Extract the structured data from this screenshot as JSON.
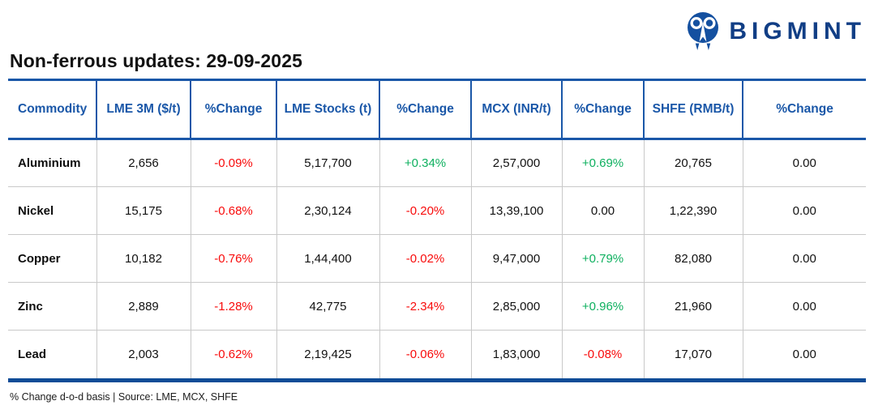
{
  "logo": {
    "text": "BIGMINT"
  },
  "page": {
    "title": "Non-ferrous updates: 29-09-2025",
    "footnote": "% Change d-o-d basis | Source: LME, MCX, SHFE"
  },
  "appearance": {
    "accent_blue": "#1a57a8",
    "logo_navy": "#113e85",
    "bottom_rule_blue": "#0f4c97",
    "negative_red": "#f80b0b",
    "positive_green": "#0eb05f",
    "grid_gray": "#c9c9c9"
  },
  "table": {
    "columns": [
      "Commodity",
      "LME 3M ($/t)",
      "%Change",
      "LME Stocks (t)",
      "%Change",
      "MCX (INR/t)",
      "%Change",
      "SHFE (RMB/t)",
      "%Change"
    ],
    "rows": [
      {
        "commodity": "Aluminium",
        "cells": [
          {
            "v": "2,656",
            "c": "plain"
          },
          {
            "v": "-0.09%",
            "c": "neg"
          },
          {
            "v": "5,17,700",
            "c": "plain"
          },
          {
            "v": "+0.34%",
            "c": "pos"
          },
          {
            "v": "2,57,000",
            "c": "plain"
          },
          {
            "v": "+0.69%",
            "c": "pos"
          },
          {
            "v": "20,765",
            "c": "plain"
          },
          {
            "v": "0.00",
            "c": "plain"
          }
        ]
      },
      {
        "commodity": "Nickel",
        "cells": [
          {
            "v": "15,175",
            "c": "plain"
          },
          {
            "v": "-0.68%",
            "c": "neg"
          },
          {
            "v": "2,30,124",
            "c": "plain"
          },
          {
            "v": "-0.20%",
            "c": "neg"
          },
          {
            "v": "13,39,100",
            "c": "plain"
          },
          {
            "v": "0.00",
            "c": "plain"
          },
          {
            "v": "1,22,390",
            "c": "plain"
          },
          {
            "v": "0.00",
            "c": "plain"
          }
        ]
      },
      {
        "commodity": "Copper",
        "cells": [
          {
            "v": "10,182",
            "c": "plain"
          },
          {
            "v": "-0.76%",
            "c": "neg"
          },
          {
            "v": "1,44,400",
            "c": "plain"
          },
          {
            "v": "-0.02%",
            "c": "neg"
          },
          {
            "v": "9,47,000",
            "c": "plain"
          },
          {
            "v": "+0.79%",
            "c": "pos"
          },
          {
            "v": "82,080",
            "c": "plain"
          },
          {
            "v": "0.00",
            "c": "plain"
          }
        ]
      },
      {
        "commodity": "Zinc",
        "cells": [
          {
            "v": "2,889",
            "c": "plain"
          },
          {
            "v": "-1.28%",
            "c": "neg"
          },
          {
            "v": "42,775",
            "c": "plain"
          },
          {
            "v": "-2.34%",
            "c": "neg"
          },
          {
            "v": "2,85,000",
            "c": "plain"
          },
          {
            "v": "+0.96%",
            "c": "pos"
          },
          {
            "v": "21,960",
            "c": "plain"
          },
          {
            "v": "0.00",
            "c": "plain"
          }
        ]
      },
      {
        "commodity": "Lead",
        "cells": [
          {
            "v": "2,003",
            "c": "plain"
          },
          {
            "v": "-0.62%",
            "c": "neg"
          },
          {
            "v": "2,19,425",
            "c": "plain"
          },
          {
            "v": "-0.06%",
            "c": "neg"
          },
          {
            "v": "1,83,000",
            "c": "plain"
          },
          {
            "v": "-0.08%",
            "c": "neg"
          },
          {
            "v": "17,070",
            "c": "plain"
          },
          {
            "v": "0.00",
            "c": "plain"
          }
        ]
      }
    ]
  }
}
